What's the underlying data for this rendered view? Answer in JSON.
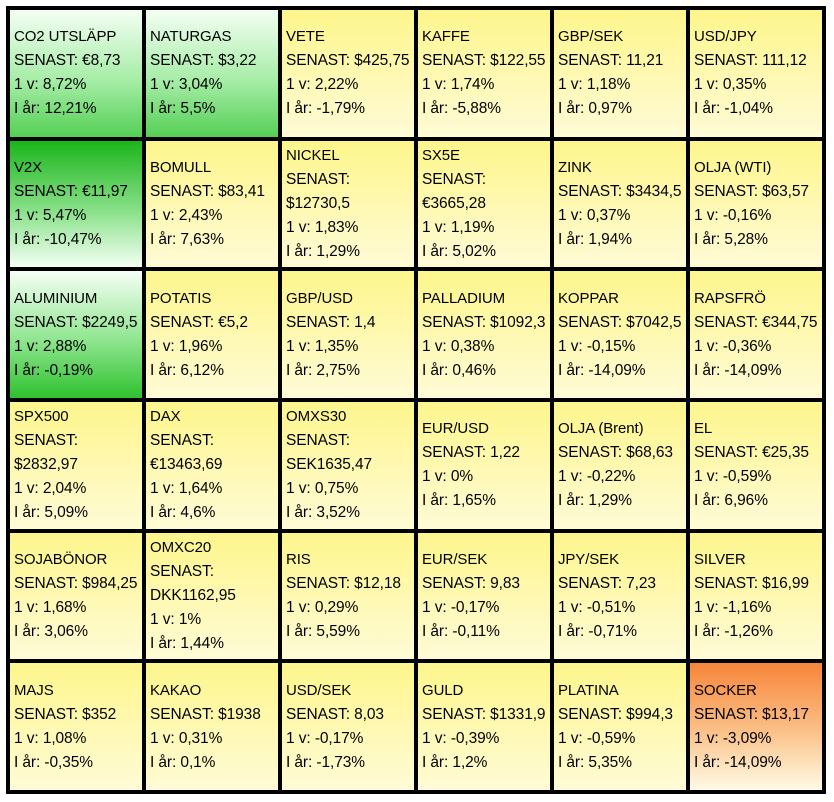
{
  "labels": {
    "last": "SENAST:",
    "day": "1 v:",
    "year": "I år:"
  },
  "colors": {
    "positive_strong": "#1bb51b",
    "positive_light": "#8ee58e",
    "neutral": "#fdf68c",
    "negative_strong": "#f6853a",
    "border": "#000000"
  },
  "tiles": [
    {
      "name": "CO2 UTSLÄPP",
      "last": "€8,73",
      "week": "8,72%",
      "ytd": "12,21%",
      "color": "green-light"
    },
    {
      "name": "NATURGAS",
      "last": "$3,22",
      "week": "3,04%",
      "ytd": "5,5%",
      "color": "green-light"
    },
    {
      "name": "VETE",
      "last": "$425,75",
      "week": "2,22%",
      "ytd": "-1,79%",
      "color": "yellow"
    },
    {
      "name": "KAFFE",
      "last": "$122,55",
      "week": "1,74%",
      "ytd": "-5,88%",
      "color": "yellow"
    },
    {
      "name": "GBP/SEK",
      "last": "11,21",
      "week": "1,18%",
      "ytd": "0,97%",
      "color": "yellow"
    },
    {
      "name": "USD/JPY",
      "last": "111,12",
      "week": "0,35%",
      "ytd": "-1,04%",
      "color": "yellow"
    },
    {
      "name": "V2X",
      "last": "€11,97",
      "week": "5,47%",
      "ytd": "-10,47%",
      "color": "green-strong"
    },
    {
      "name": "BOMULL",
      "last": "$83,41",
      "week": "2,43%",
      "ytd": "7,63%",
      "color": "yellow"
    },
    {
      "name": "NICKEL",
      "last": "$12730,5",
      "week": "1,83%",
      "ytd": "1,29%",
      "color": "yellow",
      "wrap": true
    },
    {
      "name": "SX5E",
      "last": "€3665,28",
      "week": "1,19%",
      "ytd": "5,02%",
      "color": "yellow",
      "wrap": true
    },
    {
      "name": "ZINK",
      "last": "$3434,5",
      "week": "0,37%",
      "ytd": "1,94%",
      "color": "yellow"
    },
    {
      "name": "OLJA (WTI)",
      "last": "$63,57",
      "week": "-0,16%",
      "ytd": "5,28%",
      "color": "yellow"
    },
    {
      "name": "ALUMINIUM",
      "last": "$2249,5",
      "week": "2,88%",
      "ytd": "-0,19%",
      "color": "green-mid"
    },
    {
      "name": "POTATIS",
      "last": "€5,2",
      "week": "1,96%",
      "ytd": "6,12%",
      "color": "yellow"
    },
    {
      "name": "GBP/USD",
      "last": "1,4",
      "week": "1,35%",
      "ytd": "2,75%",
      "color": "yellow"
    },
    {
      "name": "PALLADIUM",
      "last": "$1092,3",
      "week": "0,38%",
      "ytd": "0,46%",
      "color": "yellow"
    },
    {
      "name": "KOPPAR",
      "last": "$7042,5",
      "week": "-0,15%",
      "ytd": "-14,09%",
      "color": "yellow"
    },
    {
      "name": "RAPSFRÖ",
      "last": "€344,75",
      "week": "-0,36%",
      "ytd": "-14,09%",
      "color": "yellow"
    },
    {
      "name": "SPX500",
      "last": "$2832,97",
      "week": "2,04%",
      "ytd": "5,09%",
      "color": "yellow",
      "wrap": true
    },
    {
      "name": "DAX",
      "last": "€13463,69",
      "week": "1,64%",
      "ytd": "4,6%",
      "color": "yellow",
      "wrap": true
    },
    {
      "name": "OMXS30",
      "last": "SEK1635,47",
      "week": "0,75%",
      "ytd": "3,52%",
      "color": "yellow",
      "wrap": true
    },
    {
      "name": "EUR/USD",
      "last": "1,22",
      "week": "0%",
      "ytd": "1,65%",
      "color": "yellow"
    },
    {
      "name": "OLJA (Brent)",
      "last": "$68,63",
      "week": "-0,22%",
      "ytd": "1,29%",
      "color": "yellow"
    },
    {
      "name": "EL",
      "last": "€25,35",
      "week": "-0,59%",
      "ytd": "6,96%",
      "color": "yellow"
    },
    {
      "name": "SOJABÖNOR",
      "last": "$984,25",
      "week": "1,68%",
      "ytd": "3,06%",
      "color": "yellow"
    },
    {
      "name": "OMXC20",
      "last": "DKK1162,95",
      "week": "1%",
      "ytd": "1,44%",
      "color": "yellow",
      "wrap": true
    },
    {
      "name": "RIS",
      "last": "$12,18",
      "week": "0,29%",
      "ytd": "5,59%",
      "color": "yellow"
    },
    {
      "name": "EUR/SEK",
      "last": "9,83",
      "week": "-0,17%",
      "ytd": "-0,11%",
      "color": "yellow"
    },
    {
      "name": "JPY/SEK",
      "last": "7,23",
      "week": "-0,51%",
      "ytd": "-0,71%",
      "color": "yellow"
    },
    {
      "name": "SILVER",
      "last": "$16,99",
      "week": "-1,16%",
      "ytd": "-1,26%",
      "color": "yellow"
    },
    {
      "name": "MAJS",
      "last": "$352",
      "week": "1,08%",
      "ytd": "-0,35%",
      "color": "yellow"
    },
    {
      "name": "KAKAO",
      "last": "$1938",
      "week": "0,31%",
      "ytd": "0,1%",
      "color": "yellow"
    },
    {
      "name": "USD/SEK",
      "last": "8,03",
      "week": "-0,17%",
      "ytd": "-1,73%",
      "color": "yellow"
    },
    {
      "name": "GULD",
      "last": "$1331,9",
      "week": "-0,39%",
      "ytd": "1,2%",
      "color": "yellow"
    },
    {
      "name": "PLATINA",
      "last": "$994,3",
      "week": "-0,59%",
      "ytd": "5,35%",
      "color": "yellow"
    },
    {
      "name": "SOCKER",
      "last": "$13,17",
      "week": "-3,09%",
      "ytd": "-14,09%",
      "color": "orange"
    }
  ]
}
